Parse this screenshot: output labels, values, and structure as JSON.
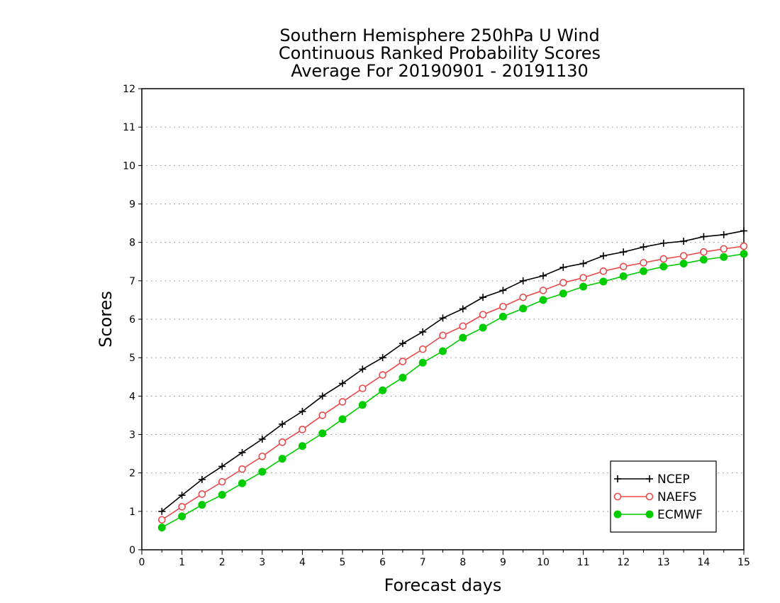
{
  "chart_data": {
    "type": "line",
    "title": [
      "Southern Hemisphere 250hPa U Wind",
      "Continuous Ranked Probability Scores",
      "Average For 20190901 - 20191130"
    ],
    "xlabel": "Forecast days",
    "ylabel": "Scores",
    "xlim": [
      0,
      15
    ],
    "ylim": [
      0,
      12
    ],
    "xticks": [
      "0",
      "1",
      "2",
      "3",
      "4",
      "5",
      "6",
      "7",
      "8",
      "9",
      "10",
      "11",
      "12",
      "13",
      "14",
      "15"
    ],
    "yticks": [
      "0",
      "1",
      "2",
      "3",
      "4",
      "5",
      "6",
      "7",
      "8",
      "9",
      "10",
      "11",
      "12"
    ],
    "grid": "horizontal-dotted",
    "legend_position": "bottom-right",
    "x": [
      0.5,
      1,
      1.5,
      2,
      2.5,
      3,
      3.5,
      4,
      4.5,
      5,
      5.5,
      6,
      6.5,
      7,
      7.5,
      8,
      8.5,
      9,
      9.5,
      10,
      10.5,
      11,
      11.5,
      12,
      12.5,
      13,
      13.5,
      14,
      14.5,
      15
    ],
    "series": [
      {
        "name": "NCEP",
        "color": "#000000",
        "marker": "plus",
        "values": [
          1.0,
          1.42,
          1.83,
          2.17,
          2.53,
          2.88,
          3.27,
          3.6,
          4.0,
          4.33,
          4.7,
          5.0,
          5.37,
          5.67,
          6.03,
          6.27,
          6.57,
          6.75,
          7.0,
          7.13,
          7.35,
          7.45,
          7.65,
          7.75,
          7.88,
          7.98,
          8.03,
          8.15,
          8.2,
          8.3
        ]
      },
      {
        "name": "NAEFS",
        "color": "#e84a4a",
        "marker": "open-circle",
        "values": [
          0.78,
          1.12,
          1.45,
          1.77,
          2.1,
          2.43,
          2.8,
          3.13,
          3.5,
          3.85,
          4.2,
          4.55,
          4.9,
          5.22,
          5.58,
          5.82,
          6.12,
          6.33,
          6.57,
          6.75,
          6.95,
          7.08,
          7.25,
          7.37,
          7.47,
          7.57,
          7.65,
          7.75,
          7.83,
          7.9
        ]
      },
      {
        "name": "ECMWF",
        "color": "#00cc00",
        "marker": "filled-circle",
        "values": [
          0.58,
          0.87,
          1.17,
          1.43,
          1.73,
          2.03,
          2.37,
          2.7,
          3.03,
          3.4,
          3.77,
          4.15,
          4.48,
          4.87,
          5.17,
          5.52,
          5.78,
          6.07,
          6.28,
          6.5,
          6.67,
          6.85,
          6.98,
          7.12,
          7.25,
          7.37,
          7.45,
          7.55,
          7.62,
          7.7
        ]
      }
    ]
  }
}
